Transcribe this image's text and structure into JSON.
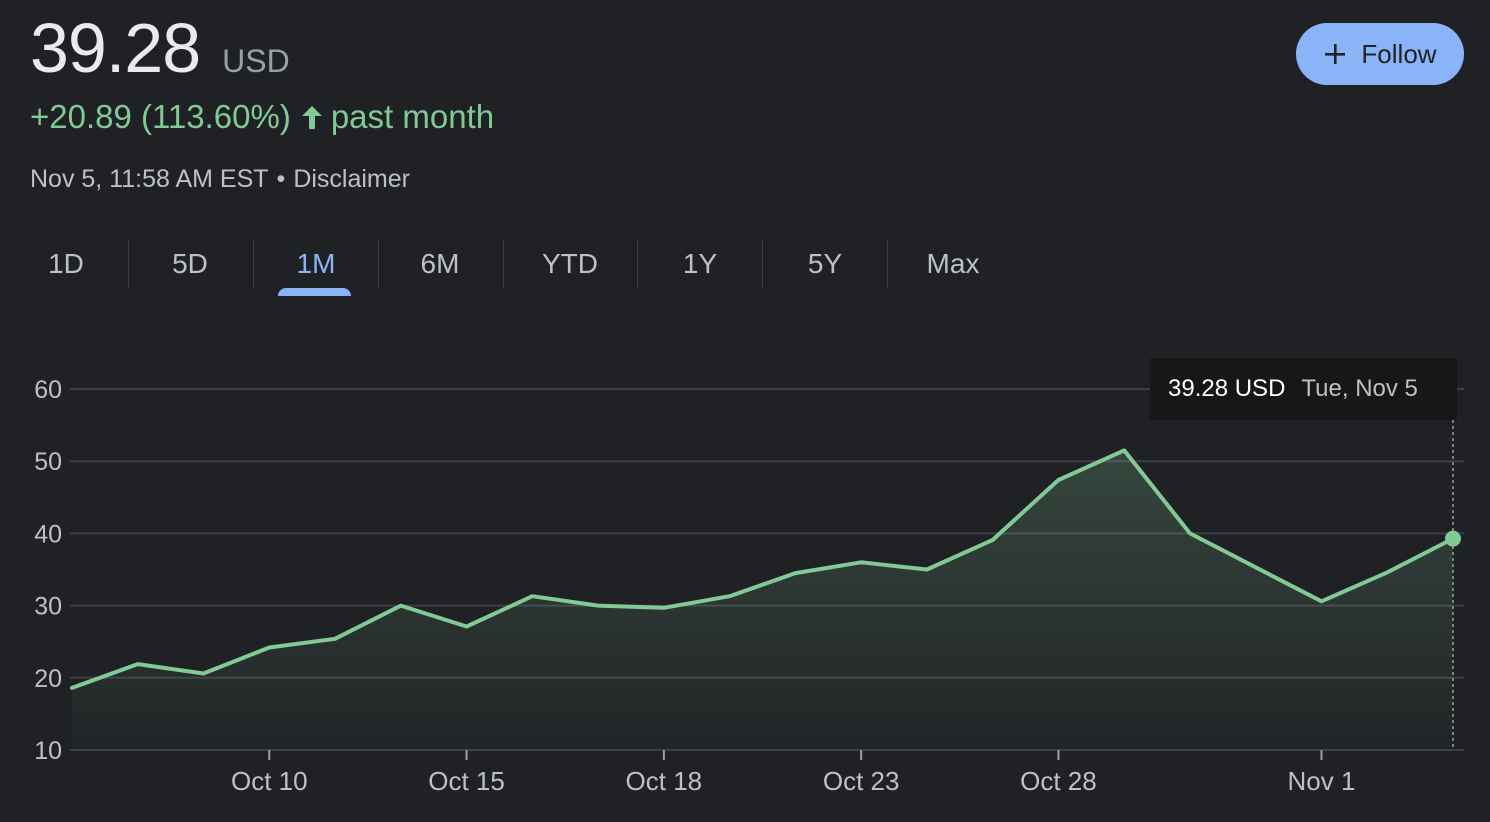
{
  "quote": {
    "price": "39.28",
    "currency": "USD",
    "change": "+20.89 (113.60%)",
    "period": "past month",
    "timestamp": "Nov 5, 11:58 AM EST",
    "separator": "•",
    "disclaimer": "Disclaimer"
  },
  "follow_button": {
    "label": "Follow",
    "icon": "plus-icon"
  },
  "tabs": [
    {
      "label": "1D",
      "active": false
    },
    {
      "label": "5D",
      "active": false
    },
    {
      "label": "1M",
      "active": true
    },
    {
      "label": "6M",
      "active": false
    },
    {
      "label": "YTD",
      "active": false
    },
    {
      "label": "1Y",
      "active": false
    },
    {
      "label": "5Y",
      "active": false
    },
    {
      "label": "Max",
      "active": false
    }
  ],
  "tooltip": {
    "value": "39.28 USD",
    "date": "Tue, Nov 5"
  },
  "colors": {
    "background": "#202124",
    "positive": "#81c995",
    "accent": "#8ab4f8",
    "grid": "#3c4043"
  },
  "chart_data": {
    "type": "area",
    "ylim": [
      10,
      60
    ],
    "yticks": [
      60,
      50,
      40,
      30,
      20,
      10
    ],
    "x_tick_labels": [
      "Oct 10",
      "Oct 15",
      "Oct 18",
      "Oct 23",
      "Oct 28",
      "Nov 1"
    ],
    "x_tick_index": [
      3,
      6,
      9,
      12,
      15,
      19
    ],
    "series": [
      {
        "values": [
          18.6,
          21.9,
          20.6,
          24.2,
          25.4,
          30.0,
          27.1,
          31.3,
          30.0,
          29.7,
          31.3,
          34.5,
          36.0,
          35.0,
          39.1,
          47.4,
          51.5,
          40.0,
          35.3,
          30.6,
          34.6,
          39.28
        ]
      }
    ],
    "grid": true,
    "highlight": {
      "index": 21,
      "value": 39.28
    }
  }
}
